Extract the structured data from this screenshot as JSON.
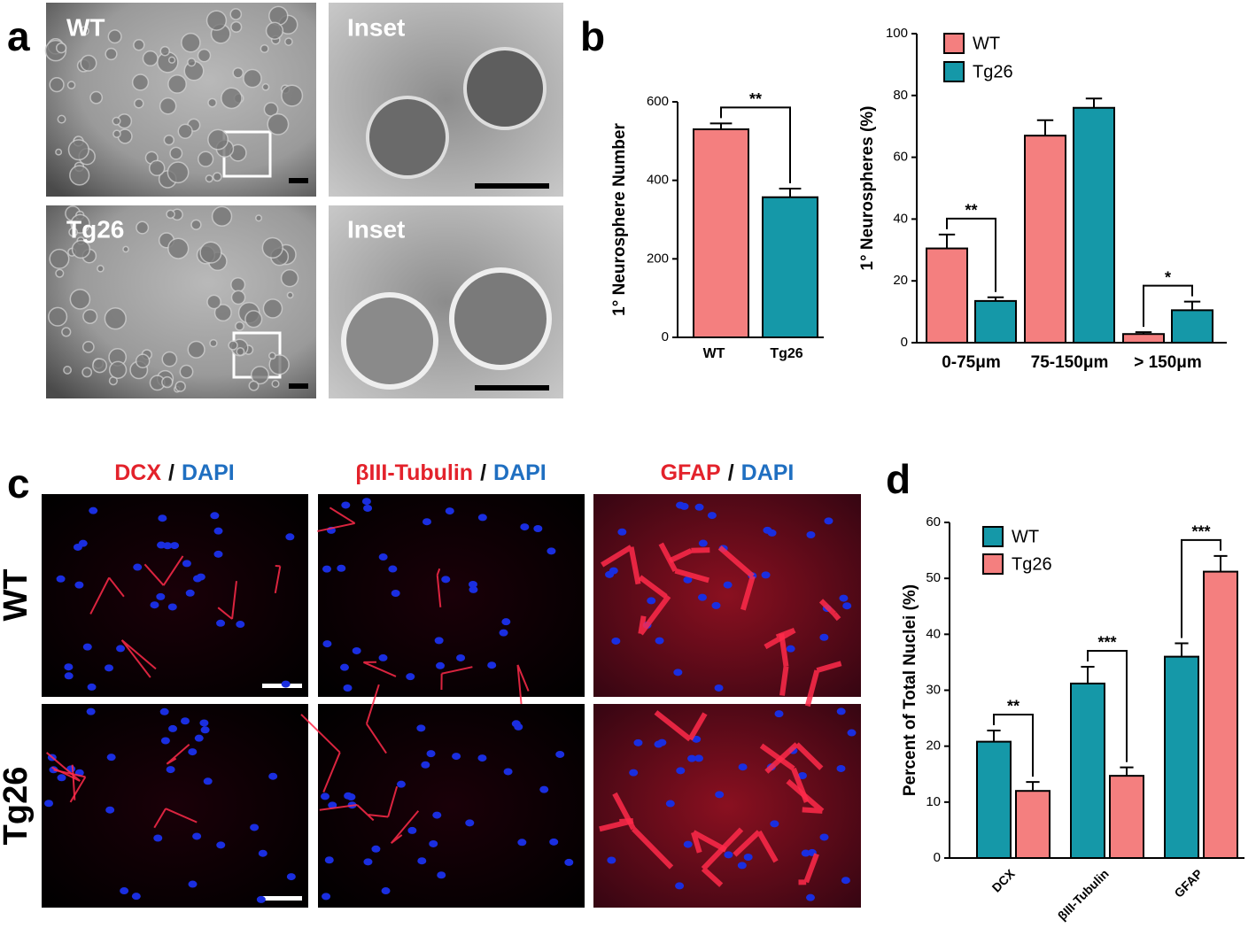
{
  "panel_labels": [
    "a",
    "b",
    "c",
    "d"
  ],
  "panel_a_labels": [
    "WT",
    "Inset",
    "Tg26",
    "Inset"
  ],
  "panel_c": {
    "columns": [
      [
        {
          "text": "DCX",
          "color": "#e3222b"
        },
        {
          "text": "/",
          "color": "#111111"
        },
        {
          "text": "DAPI",
          "color": "#1f6fc1"
        }
      ],
      [
        {
          "text": "βIII-Tubulin",
          "color": "#e3222b"
        },
        {
          "text": "/",
          "color": "#111111"
        },
        {
          "text": "DAPI",
          "color": "#1f6fc1"
        }
      ],
      [
        {
          "text": "GFAP",
          "color": "#e3222b"
        },
        {
          "text": "/",
          "color": "#111111"
        },
        {
          "text": "DAPI",
          "color": "#1f6fc1"
        }
      ]
    ],
    "rows": [
      "WT",
      "Tg26"
    ]
  },
  "chart_data": [
    {
      "type": "bar",
      "y_label": "1° Neurosphere Number",
      "categories": [
        "WT",
        "Tg26"
      ],
      "values": [
        530,
        357
      ],
      "errors": [
        15,
        22
      ],
      "colors": [
        "#f47f7f",
        "#1598a8"
      ],
      "annotation": "**",
      "ylim": [
        0,
        600
      ],
      "yticks": [
        0,
        200,
        400,
        600
      ]
    },
    {
      "type": "bar",
      "y_label": "1° Neurospheres (%)",
      "categories": [
        "0-75μm",
        "75-150μm",
        "> 150μm"
      ],
      "series": [
        {
          "name": "WT",
          "color": "#f47f7f",
          "values": [
            30.5,
            67,
            2.8
          ],
          "errors": [
            4.5,
            5,
            0.6
          ]
        },
        {
          "name": "Tg26",
          "color": "#1598a8",
          "values": [
            13.5,
            76,
            10.5
          ],
          "errors": [
            1.2,
            3,
            2.8
          ]
        }
      ],
      "annotations": [
        "**",
        null,
        "*"
      ],
      "ylim": [
        0,
        100
      ],
      "yticks": [
        0,
        20,
        40,
        60,
        80,
        100
      ],
      "legend": "top-left"
    },
    {
      "type": "bar",
      "y_label": "Percent of Total Nuclei (%)",
      "categories": [
        "DCX",
        "βIII-Tubulin",
        "GFAP"
      ],
      "series": [
        {
          "name": "WT",
          "color": "#1598a8",
          "values": [
            20.8,
            31.2,
            36
          ],
          "errors": [
            2,
            3,
            2.4
          ]
        },
        {
          "name": "Tg26",
          "color": "#f47f7f",
          "values": [
            12,
            14.7,
            51.2
          ],
          "errors": [
            1.6,
            1.5,
            2.8
          ]
        }
      ],
      "annotations": [
        "**",
        "***",
        "***"
      ],
      "ylim": [
        0,
        60
      ],
      "yticks": [
        0,
        10,
        20,
        30,
        40,
        50,
        60
      ],
      "legend": "top-left"
    }
  ]
}
